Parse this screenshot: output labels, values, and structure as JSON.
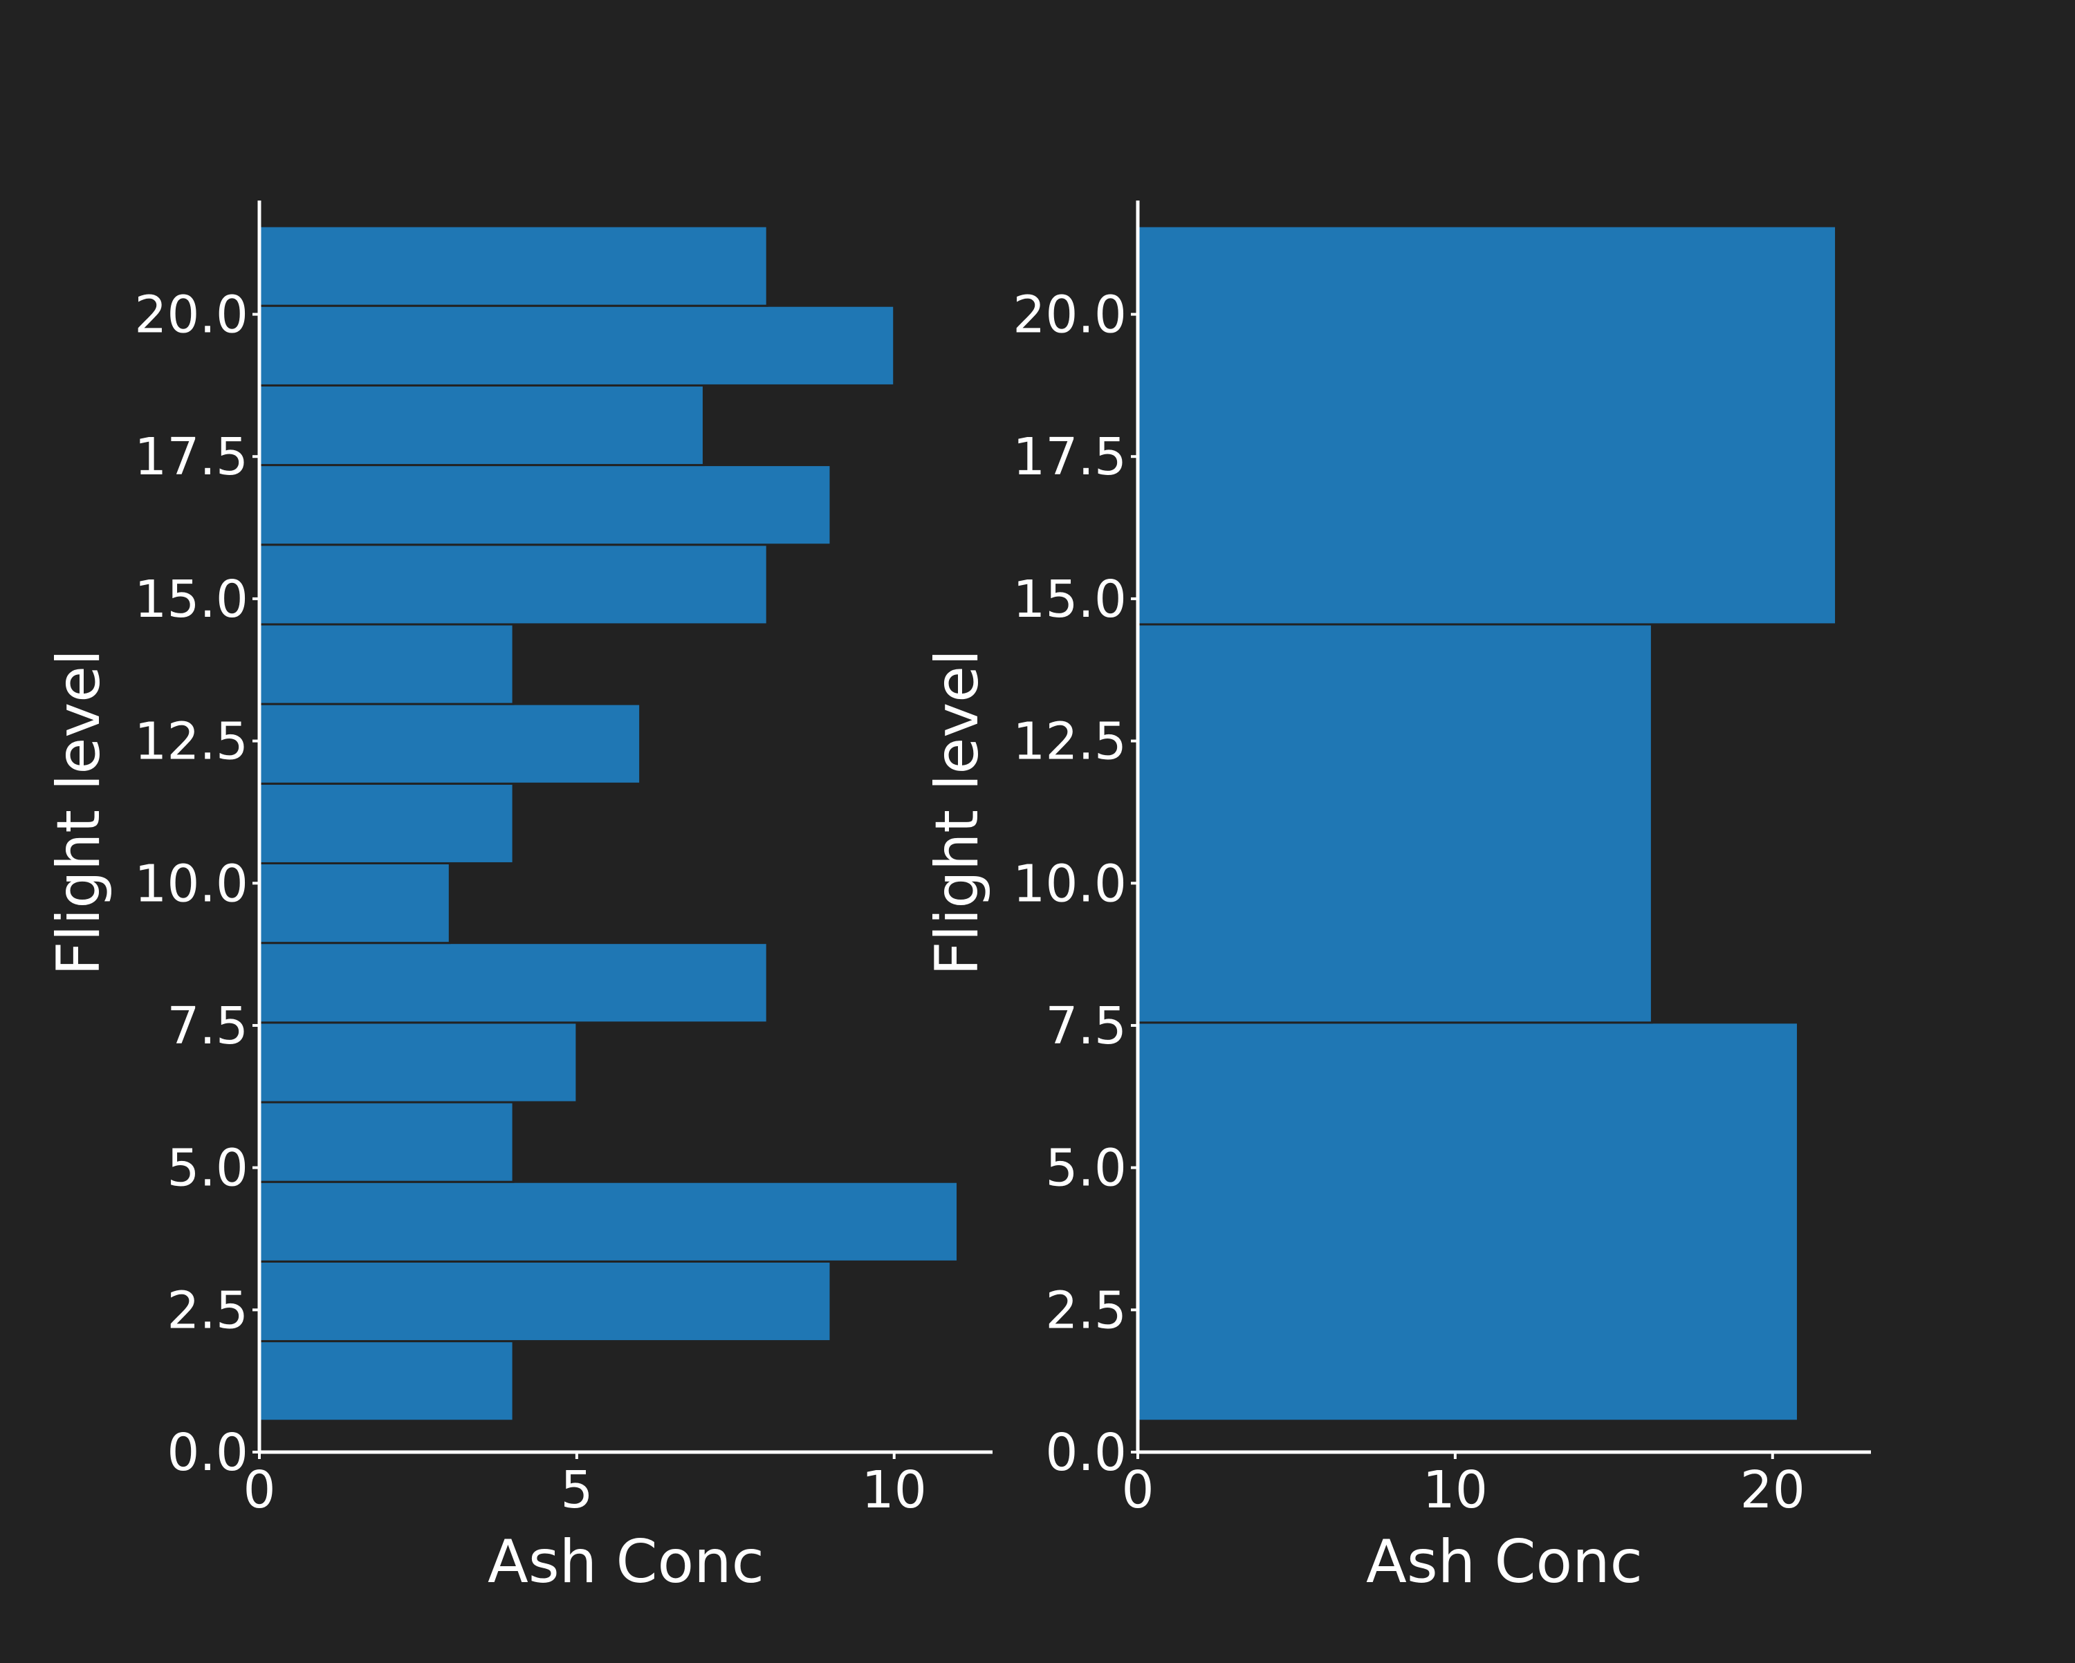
{
  "colors": {
    "background": "#222222",
    "bar": "#1f77b4",
    "axis": "#ffffff",
    "text": "#ffffff"
  },
  "chart_data": [
    {
      "type": "bar",
      "orientation": "horizontal",
      "xlabel": "Ash Conc",
      "ylabel": "Flight level",
      "xlim": [
        0,
        11.55
      ],
      "ylim": [
        0,
        22
      ],
      "xticks": [
        0,
        5,
        10
      ],
      "xtick_labels": [
        "0",
        "5",
        "10"
      ],
      "yticks": [
        0,
        2.5,
        5,
        7.5,
        10,
        12.5,
        15,
        17.5,
        20
      ],
      "ytick_labels": [
        "0.0",
        "2.5",
        "5.0",
        "7.5",
        "10.0",
        "12.5",
        "15.0",
        "17.5",
        "20.0"
      ],
      "grid": false,
      "bars": [
        {
          "y0": 0.55,
          "y1": 1.95,
          "value": 4
        },
        {
          "y0": 1.95,
          "y1": 3.35,
          "value": 9
        },
        {
          "y0": 3.35,
          "y1": 4.75,
          "value": 11
        },
        {
          "y0": 4.75,
          "y1": 6.15,
          "value": 4
        },
        {
          "y0": 6.15,
          "y1": 7.55,
          "value": 5
        },
        {
          "y0": 7.55,
          "y1": 8.95,
          "value": 8
        },
        {
          "y0": 8.95,
          "y1": 10.35,
          "value": 3
        },
        {
          "y0": 10.35,
          "y1": 11.75,
          "value": 4
        },
        {
          "y0": 11.75,
          "y1": 13.15,
          "value": 6
        },
        {
          "y0": 13.15,
          "y1": 14.55,
          "value": 4
        },
        {
          "y0": 14.55,
          "y1": 15.95,
          "value": 8
        },
        {
          "y0": 15.95,
          "y1": 17.35,
          "value": 9
        },
        {
          "y0": 17.35,
          "y1": 18.75,
          "value": 7
        },
        {
          "y0": 18.75,
          "y1": 20.15,
          "value": 10
        },
        {
          "y0": 20.15,
          "y1": 21.55,
          "value": 8
        }
      ]
    },
    {
      "type": "bar",
      "orientation": "horizontal",
      "xlabel": "Ash Conc",
      "ylabel": "Flight level",
      "xlim": [
        0,
        23.1
      ],
      "ylim": [
        0,
        22
      ],
      "xticks": [
        0,
        10,
        20
      ],
      "xtick_labels": [
        "0",
        "10",
        "20"
      ],
      "yticks": [
        0,
        2.5,
        5,
        7.5,
        10,
        12.5,
        15,
        17.5,
        20
      ],
      "ytick_labels": [
        "0.0",
        "2.5",
        "5.0",
        "7.5",
        "10.0",
        "12.5",
        "15.0",
        "17.5",
        "20.0"
      ],
      "grid": false,
      "bars": [
        {
          "y0": 0.55,
          "y1": 7.55,
          "value": 20.8
        },
        {
          "y0": 7.55,
          "y1": 14.55,
          "value": 16.2
        },
        {
          "y0": 14.55,
          "y1": 21.55,
          "value": 22
        }
      ]
    }
  ]
}
